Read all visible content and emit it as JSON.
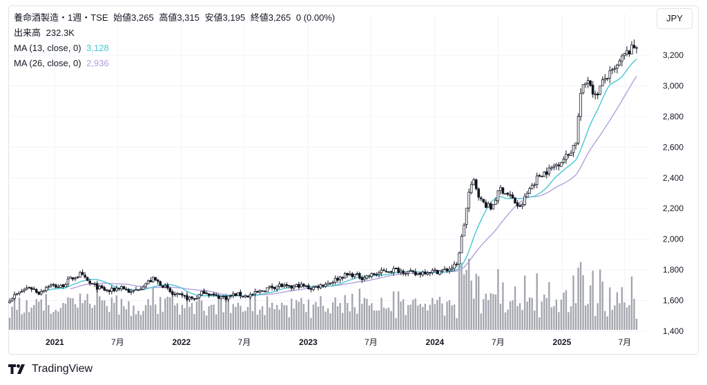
{
  "header": {
    "symbol": "養命酒製造・1週・TSE",
    "open_label": "始値",
    "open": "3,265",
    "high_label": "高値",
    "high": "3,315",
    "low_label": "安値",
    "low": "3,195",
    "close_label": "終値",
    "close": "3,265",
    "change": "0 (0.00%)"
  },
  "volume_legend": {
    "label": "出来高",
    "value": "232.3K"
  },
  "ma13": {
    "label": "MA (13, close, 0)",
    "value": "3,128",
    "color": "#45c5d3"
  },
  "ma26": {
    "label": "MA (26, close, 0)",
    "value": "2,936",
    "color": "#b39ddb"
  },
  "currency": "JPY",
  "brand": "TradingView",
  "chart_data": {
    "type": "candlestick",
    "interval": "weekly",
    "x_range": [
      "2020-08-24",
      "2025-08-04"
    ],
    "ylim": [
      1400,
      3380
    ],
    "y_ticks": [
      "1,400",
      "1,600",
      "1,800",
      "2,000",
      "2,200",
      "2,400",
      "2,600",
      "2,800",
      "3,000",
      "3,200"
    ],
    "x_ticks": [
      {
        "label": "2021",
        "date": "2021-01-01",
        "bold": true
      },
      {
        "label": "7月",
        "date": "2021-07-01",
        "bold": false
      },
      {
        "label": "2022",
        "date": "2022-01-01",
        "bold": true
      },
      {
        "label": "7月",
        "date": "2022-07-01",
        "bold": false
      },
      {
        "label": "2023",
        "date": "2023-01-01",
        "bold": true
      },
      {
        "label": "7月",
        "date": "2023-07-01",
        "bold": false
      },
      {
        "label": "2024",
        "date": "2024-01-01",
        "bold": true
      },
      {
        "label": "7月",
        "date": "2024-07-01",
        "bold": false
      },
      {
        "label": "2025",
        "date": "2025-01-01",
        "bold": true
      },
      {
        "label": "7月",
        "date": "2025-07-01",
        "bold": false
      }
    ],
    "close_path": [
      [
        "2020-08-24",
        1610
      ],
      [
        "2020-09-21",
        1650
      ],
      [
        "2020-10-19",
        1690
      ],
      [
        "2020-11-16",
        1650
      ],
      [
        "2020-12-14",
        1700
      ],
      [
        "2021-01-18",
        1690
      ],
      [
        "2021-02-15",
        1740
      ],
      [
        "2021-03-15",
        1770
      ],
      [
        "2021-04-12",
        1710
      ],
      [
        "2021-05-10",
        1680
      ],
      [
        "2021-06-07",
        1660
      ],
      [
        "2021-07-12",
        1690
      ],
      [
        "2021-08-09",
        1650
      ],
      [
        "2021-09-13",
        1700
      ],
      [
        "2021-10-11",
        1740
      ],
      [
        "2021-11-08",
        1700
      ],
      [
        "2021-12-06",
        1640
      ],
      [
        "2022-01-10",
        1620
      ],
      [
        "2022-02-07",
        1610
      ],
      [
        "2022-03-07",
        1660
      ],
      [
        "2022-04-04",
        1630
      ],
      [
        "2022-05-09",
        1620
      ],
      [
        "2022-06-06",
        1640
      ],
      [
        "2022-07-11",
        1630
      ],
      [
        "2022-08-08",
        1650
      ],
      [
        "2022-09-05",
        1680
      ],
      [
        "2022-10-10",
        1700
      ],
      [
        "2022-11-07",
        1680
      ],
      [
        "2022-12-05",
        1700
      ],
      [
        "2023-01-09",
        1680
      ],
      [
        "2023-02-06",
        1700
      ],
      [
        "2023-03-06",
        1720
      ],
      [
        "2023-04-10",
        1760
      ],
      [
        "2023-05-08",
        1770
      ],
      [
        "2023-06-05",
        1750
      ],
      [
        "2023-07-10",
        1770
      ],
      [
        "2023-08-07",
        1790
      ],
      [
        "2023-09-04",
        1800
      ],
      [
        "2023-10-09",
        1790
      ],
      [
        "2023-11-06",
        1770
      ],
      [
        "2023-12-04",
        1790
      ],
      [
        "2024-01-08",
        1790
      ],
      [
        "2024-02-05",
        1800
      ],
      [
        "2024-03-04",
        1830
      ],
      [
        "2024-03-25",
        2100
      ],
      [
        "2024-04-08",
        2300
      ],
      [
        "2024-04-22",
        2380
      ],
      [
        "2024-05-13",
        2250
      ],
      [
        "2024-06-10",
        2200
      ],
      [
        "2024-07-08",
        2330
      ],
      [
        "2024-08-05",
        2280
      ],
      [
        "2024-09-02",
        2200
      ],
      [
        "2024-09-30",
        2330
      ],
      [
        "2024-10-28",
        2420
      ],
      [
        "2024-11-25",
        2450
      ],
      [
        "2024-12-23",
        2500
      ],
      [
        "2025-01-20",
        2550
      ],
      [
        "2025-02-10",
        2640
      ],
      [
        "2025-02-24",
        2950
      ],
      [
        "2025-03-17",
        3050
      ],
      [
        "2025-04-07",
        2930
      ],
      [
        "2025-05-05",
        3050
      ],
      [
        "2025-06-02",
        3100
      ],
      [
        "2025-06-30",
        3200
      ],
      [
        "2025-08-04",
        3265
      ]
    ],
    "volume_note": "volume bars in the bottom pane; no volume axis printed",
    "legend_placement": "top-left",
    "grid": true
  }
}
